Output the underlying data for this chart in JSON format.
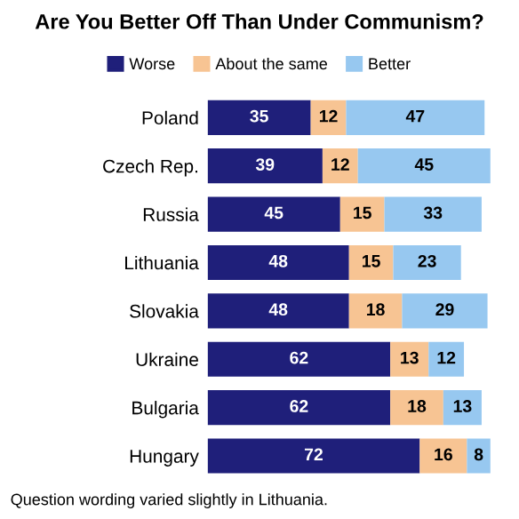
{
  "chart_data": {
    "type": "bar",
    "orientation": "horizontal",
    "stacked": true,
    "data_labels": true,
    "legend": "top",
    "grid": false,
    "title": "Are You Better Off Than Under Communism?",
    "categories": [
      "Poland",
      "Czech Rep.",
      "Russia",
      "Lithuania",
      "Slovakia",
      "Ukraine",
      "Bulgaria",
      "Hungary"
    ],
    "series": [
      {
        "name": "Worse",
        "color": "#1f1f7a",
        "values": [
          35,
          39,
          45,
          48,
          48,
          62,
          62,
          72
        ]
      },
      {
        "name": "About the same",
        "color": "#f7c493",
        "values": [
          12,
          12,
          15,
          15,
          18,
          13,
          18,
          16
        ]
      },
      {
        "name": "Better",
        "color": "#97c8f0",
        "values": [
          47,
          45,
          33,
          23,
          29,
          12,
          13,
          8
        ]
      }
    ],
    "annotations": [
      "Question wording varied slightly in Lithuania."
    ]
  }
}
